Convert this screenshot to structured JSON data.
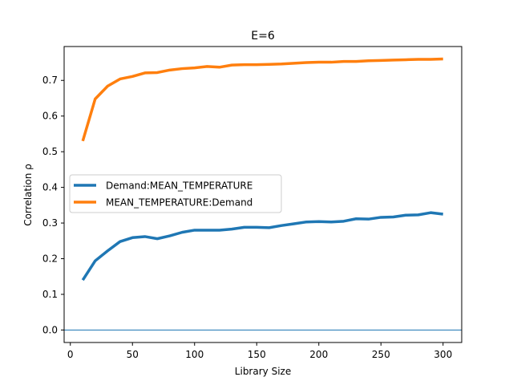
{
  "chart_data": {
    "type": "line",
    "title": "E=6",
    "xlabel": "Library Size",
    "ylabel": "Correlation ρ",
    "xlim": [
      -5,
      315
    ],
    "ylim": [
      -0.035,
      0.795
    ],
    "xticks": [
      0,
      50,
      100,
      150,
      200,
      250,
      300
    ],
    "yticks": [
      0.0,
      0.1,
      0.2,
      0.3,
      0.4,
      0.5,
      0.6,
      0.7
    ],
    "ytick_labels": [
      "0.0",
      "0.1",
      "0.2",
      "0.3",
      "0.4",
      "0.5",
      "0.6",
      "0.7"
    ],
    "grid": false,
    "legend_position": "center-left",
    "x": [
      10,
      20,
      30,
      40,
      50,
      60,
      70,
      80,
      90,
      100,
      110,
      120,
      130,
      140,
      150,
      160,
      170,
      180,
      190,
      200,
      210,
      220,
      230,
      240,
      250,
      260,
      270,
      280,
      290,
      300
    ],
    "series": [
      {
        "name": "Demand:MEAN_TEMPERATURE",
        "color": "#1f77b4",
        "values": [
          0.14,
          0.194,
          0.222,
          0.248,
          0.259,
          0.262,
          0.256,
          0.264,
          0.274,
          0.28,
          0.28,
          0.28,
          0.283,
          0.288,
          0.288,
          0.287,
          0.293,
          0.298,
          0.303,
          0.304,
          0.303,
          0.305,
          0.312,
          0.311,
          0.316,
          0.317,
          0.322,
          0.323,
          0.329,
          0.325
        ]
      },
      {
        "name": "MEAN_TEMPERATURE:Demand",
        "color": "#ff7f0e",
        "values": [
          0.53,
          0.648,
          0.684,
          0.704,
          0.711,
          0.721,
          0.722,
          0.729,
          0.733,
          0.735,
          0.739,
          0.737,
          0.743,
          0.744,
          0.744,
          0.745,
          0.746,
          0.748,
          0.75,
          0.751,
          0.751,
          0.753,
          0.753,
          0.755,
          0.756,
          0.757,
          0.758,
          0.759,
          0.759,
          0.76
        ]
      }
    ],
    "reference_line": {
      "y": 0.0,
      "color": "#1f77b4"
    }
  }
}
